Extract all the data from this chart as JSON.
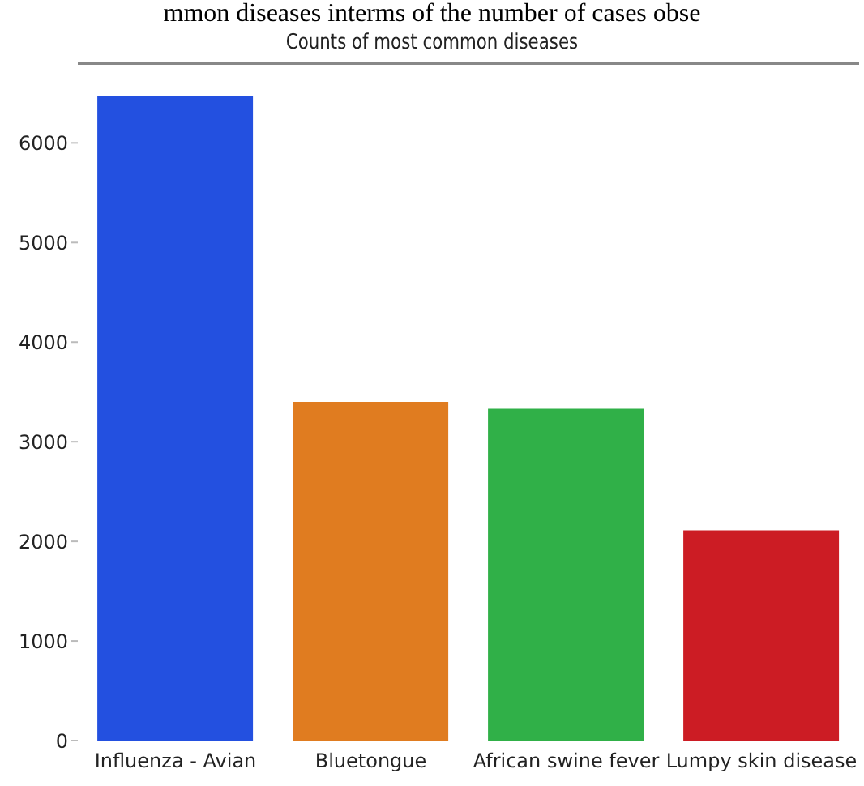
{
  "chart_data": {
    "type": "bar",
    "title": "Counts of most common diseases",
    "annotations": [
      "mmon diseases interms of the number of cases obse"
    ],
    "categories": [
      "Influenza - Avian",
      "Bluetongue",
      "African swine fever",
      "Lumpy skin disease"
    ],
    "values": [
      6470,
      3400,
      3330,
      2110
    ],
    "colors": [
      "#2350e0",
      "#e07c20",
      "#30b048",
      "#cc1c24"
    ],
    "ylim": [
      0,
      6800
    ],
    "yticks": [
      0,
      1000,
      2000,
      3000,
      4000,
      5000,
      6000
    ]
  }
}
